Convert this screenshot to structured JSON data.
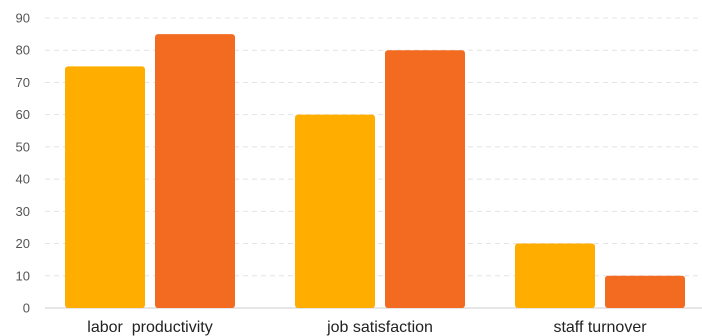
{
  "chart_data": {
    "type": "bar",
    "categories": [
      "labor  productivity",
      "job satisfaction",
      "staff turnover"
    ],
    "series": [
      {
        "values": [
          75,
          60,
          20
        ],
        "color": "#FFAE00"
      },
      {
        "values": [
          85,
          80,
          10
        ],
        "color": "#F26B21"
      }
    ],
    "yticks": [
      "0",
      "10",
      "20",
      "30",
      "40",
      "50",
      "60",
      "70",
      "80",
      "90"
    ],
    "ylim": [
      0,
      90
    ],
    "grid": true,
    "legend": "none"
  }
}
